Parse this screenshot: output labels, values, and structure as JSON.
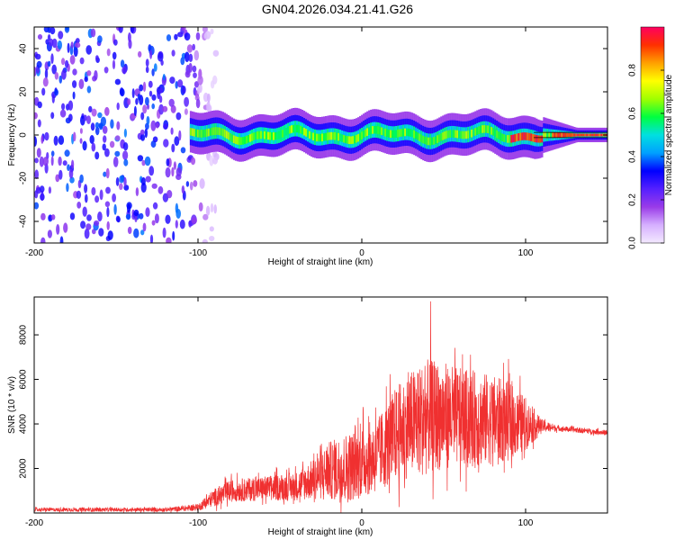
{
  "title": "GN04.2026.034.21.41.G26",
  "colors": {
    "snr_line": "#f03030",
    "spectrogram_base": "#7f2be0"
  },
  "chart_data": [
    {
      "type": "heatmap",
      "name": "spectrogram",
      "xlabel": "Height of straight line (km)",
      "ylabel": "Frequency (Hz)",
      "xlim": [
        -200,
        150
      ],
      "ylim": [
        -50,
        50
      ],
      "xticks": [
        -200,
        -100,
        0,
        100
      ],
      "yticks": [
        -40,
        -20,
        0,
        20,
        40
      ],
      "xtick_labels": [
        "-200",
        "-100",
        "0",
        "100"
      ],
      "ytick_labels": [
        "-40",
        "-20",
        "0",
        "20",
        "40"
      ],
      "noise_region_x": [
        -200,
        -90
      ],
      "signal_band_center_hz": 0,
      "signal_band_halfwidth_hz": 6,
      "colorbar": {
        "label": "Normalized spectral amplitude",
        "range": [
          0.0,
          1.0
        ],
        "ticks": [
          0.0,
          0.2,
          0.4,
          0.6,
          0.8
        ],
        "tick_labels": [
          "0.0",
          "0.2",
          "0.4",
          "0.6",
          "0.8"
        ],
        "colors": [
          "#f3e9ff",
          "#d6b0ff",
          "#9a3be8",
          "#5520ff",
          "#0000ff",
          "#00a0ff",
          "#00e0e0",
          "#00ff40",
          "#a0ff00",
          "#ffff00",
          "#ffa000",
          "#ff3000",
          "#ff0060"
        ]
      }
    },
    {
      "type": "line",
      "name": "snr",
      "xlabel": "Height of straight line (km)",
      "ylabel": "SNR (10 * v/v)",
      "xlim": [
        -200,
        150
      ],
      "ylim": [
        0,
        9700
      ],
      "xticks": [
        -200,
        -100,
        0,
        100
      ],
      "yticks": [
        2000,
        4000,
        6000,
        8000
      ],
      "xtick_labels": [
        "-200",
        "-100",
        "0",
        "100"
      ],
      "ytick_labels": [
        "2000",
        "4000",
        "6000",
        "8000"
      ],
      "envelope": {
        "x": [
          -200,
          -120,
          -100,
          -90,
          -80,
          -60,
          -40,
          -30,
          -20,
          -10,
          0,
          10,
          20,
          30,
          40,
          50,
          60,
          70,
          80,
          90,
          100,
          110,
          120,
          150
        ],
        "mean": [
          150,
          150,
          250,
          700,
          1000,
          1100,
          1200,
          1500,
          1900,
          2000,
          2300,
          2600,
          3500,
          4000,
          4300,
          4400,
          4300,
          4200,
          4200,
          4100,
          4000,
          3900,
          3800,
          3600
        ],
        "spread": [
          80,
          90,
          150,
          400,
          500,
          550,
          650,
          900,
          1300,
          1600,
          1600,
          1700,
          2100,
          2400,
          2600,
          2400,
          2200,
          2200,
          2000,
          1800,
          1200,
          300,
          120,
          120
        ]
      },
      "peak": {
        "x": 42,
        "y": 9500
      }
    }
  ]
}
